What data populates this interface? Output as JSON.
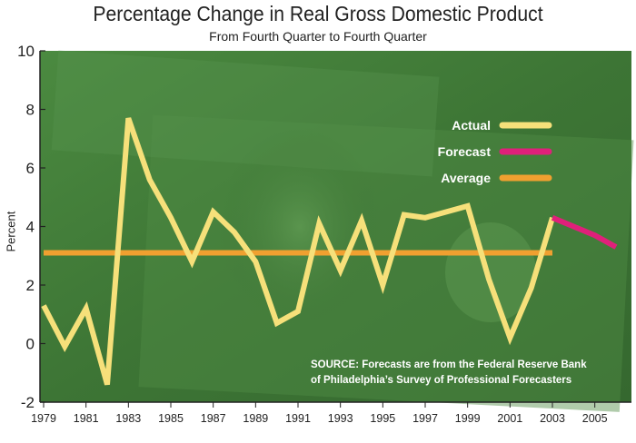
{
  "chart_data": {
    "type": "line",
    "title": "Percentage Change in Real Gross Domestic Product",
    "subtitle": "From Fourth Quarter to Fourth Quarter",
    "ylabel": "Percent",
    "xlabel": "",
    "ylim": [
      -2,
      10
    ],
    "xlim": [
      1979,
      2006
    ],
    "yticks": [
      -2,
      0,
      2,
      4,
      6,
      8,
      10
    ],
    "xticks": [
      1979,
      1981,
      1983,
      1985,
      1987,
      1989,
      1991,
      1993,
      1995,
      1997,
      1999,
      2001,
      2003,
      2005
    ],
    "grid": false,
    "legend_position": "top-right",
    "colors": {
      "actual": "#f6e07a",
      "forecast": "#e0207a",
      "average": "#f0a030",
      "background": "#3f7a36"
    },
    "series": [
      {
        "name": "Actual",
        "x": [
          1979,
          1980,
          1981,
          1982,
          1983,
          1984,
          1985,
          1986,
          1987,
          1988,
          1989,
          1990,
          1991,
          1992,
          1993,
          1994,
          1995,
          1996,
          1997,
          1998,
          1999,
          2000,
          2001,
          2002,
          2003
        ],
        "y": [
          1.3,
          -0.1,
          1.2,
          -1.4,
          7.7,
          5.6,
          4.3,
          2.8,
          4.5,
          3.8,
          2.8,
          0.7,
          1.1,
          4.1,
          2.5,
          4.2,
          2.0,
          4.4,
          4.3,
          4.5,
          4.7,
          2.2,
          0.2,
          1.9,
          4.3
        ]
      },
      {
        "name": "Forecast",
        "x": [
          2003,
          2004,
          2005,
          2006
        ],
        "y": [
          4.3,
          4.0,
          3.7,
          3.3
        ]
      },
      {
        "name": "Average",
        "x": [
          1979,
          2003
        ],
        "y": [
          3.1,
          3.1
        ]
      }
    ],
    "annotation": [
      "SOURCE: Forecasts are from the Federal Reserve Bank",
      "of Philadelphia’s Survey of Professional Forecasters"
    ]
  }
}
